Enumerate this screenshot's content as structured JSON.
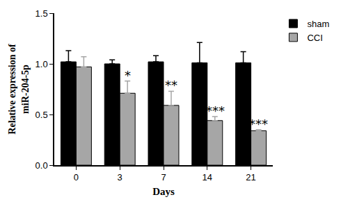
{
  "chart_data": {
    "type": "bar",
    "xlabel": "Days",
    "ylabel": [
      "Relative expression of",
      "miR-204-5p"
    ],
    "categories": [
      "0",
      "3",
      "7",
      "14",
      "21"
    ],
    "series": [
      {
        "name": "sham",
        "color": "#000000",
        "values": [
          1.02,
          1.0,
          1.02,
          1.01,
          1.01
        ],
        "errors": [
          0.11,
          0.04,
          0.06,
          0.2,
          0.11
        ]
      },
      {
        "name": "CCI",
        "color": "#a6a6a6",
        "values": [
          0.97,
          0.71,
          0.59,
          0.44,
          0.34
        ],
        "errors": [
          0.1,
          0.12,
          0.14,
          0.04,
          0.01
        ]
      }
    ],
    "annotations": [
      {
        "series": "CCI",
        "category": "3",
        "text": "*"
      },
      {
        "series": "CCI",
        "category": "7",
        "text": "**"
      },
      {
        "series": "CCI",
        "category": "14",
        "text": "***"
      },
      {
        "series": "CCI",
        "category": "21",
        "text": "***"
      }
    ],
    "ylim": [
      0,
      1.5
    ],
    "yticks": [
      {
        "value": 0,
        "label": "0.0"
      },
      {
        "value": 0.5,
        "label": "0.5"
      },
      {
        "value": 1,
        "label": "1.0"
      },
      {
        "value": 1.5,
        "label": "1.5"
      }
    ],
    "grid": false,
    "legend": "top right"
  }
}
